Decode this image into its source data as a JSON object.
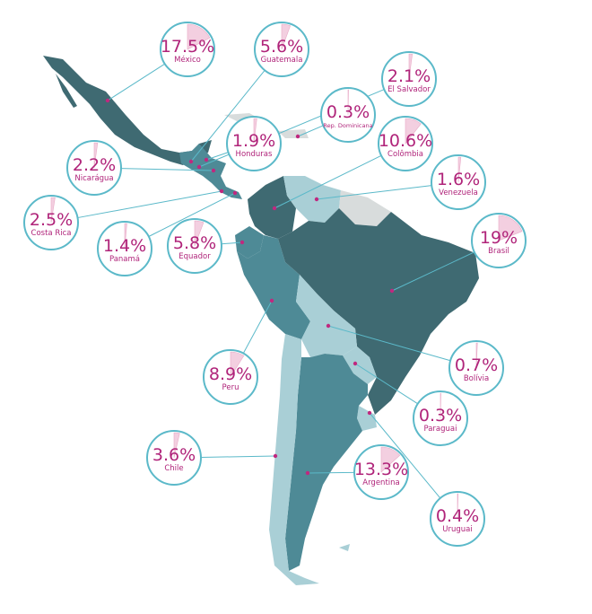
{
  "countries": [
    {
      "name": "México",
      "value": 17.5,
      "value_label": "17.5%"
    },
    {
      "name": "Guatemala",
      "value": 5.6,
      "value_label": "5.6%"
    },
    {
      "name": "El Salvador",
      "value": 2.1,
      "value_label": "2.1%"
    },
    {
      "name": "Rep. Dominicana",
      "value": 0.3,
      "value_label": "0.3%"
    },
    {
      "name": "Honduras",
      "value": 1.9,
      "value_label": "1.9%"
    },
    {
      "name": "Colômbia",
      "value": 10.6,
      "value_label": "10.6%"
    },
    {
      "name": "Nicarágua",
      "value": 2.2,
      "value_label": "2.2%"
    },
    {
      "name": "Venezuela",
      "value": 1.6,
      "value_label": "1.6%"
    },
    {
      "name": "Costa Rica",
      "value": 2.5,
      "value_label": "2.5%"
    },
    {
      "name": "Panamá",
      "value": 1.4,
      "value_label": "1.4%"
    },
    {
      "name": "Equador",
      "value": 5.8,
      "value_label": "5.8%"
    },
    {
      "name": "Brasil",
      "value": 19,
      "value_label": "19%"
    },
    {
      "name": "Bolívia",
      "value": 0.7,
      "value_label": "0.7%"
    },
    {
      "name": "Peru",
      "value": 8.9,
      "value_label": "8.9%"
    },
    {
      "name": "Paraguai",
      "value": 0.3,
      "value_label": "0.3%"
    },
    {
      "name": "Chile",
      "value": 3.6,
      "value_label": "3.6%"
    },
    {
      "name": "Argentina",
      "value": 13.3,
      "value_label": "13.3%"
    },
    {
      "name": "Uruguai",
      "value": 0.4,
      "value_label": "0.4%"
    }
  ]
}
